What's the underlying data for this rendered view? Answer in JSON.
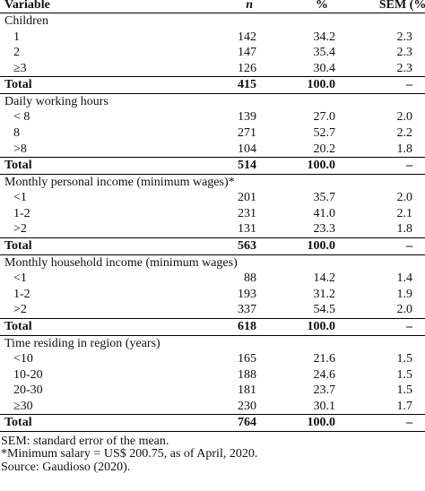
{
  "table": {
    "header": [
      "Variable",
      "n",
      "%",
      "SEM (%)"
    ],
    "sections": [
      {
        "title": "Children",
        "rows": [
          [
            "1",
            "142",
            "34.2",
            "2.3"
          ],
          [
            "2",
            "147",
            "35.4",
            "2.3"
          ],
          [
            "≥3",
            "126",
            "30.4",
            "2.3"
          ]
        ],
        "total": [
          "Total",
          "415",
          "100.0",
          "–"
        ]
      },
      {
        "title": "Daily working hours",
        "rows": [
          [
            "< 8",
            "139",
            "27.0",
            "2.0"
          ],
          [
            "8",
            "271",
            "52.7",
            "2.2"
          ],
          [
            ">8",
            "104",
            "20.2",
            "1.8"
          ]
        ],
        "total": [
          "Total",
          "514",
          "100.0",
          "–"
        ]
      },
      {
        "title": "Monthly personal income (minimum wages)*",
        "rows": [
          [
            "<1",
            "201",
            "35.7",
            "2.0"
          ],
          [
            "1-2",
            "231",
            "41.0",
            "2.1"
          ],
          [
            ">2",
            "131",
            "23.3",
            "1.8"
          ]
        ],
        "total": [
          "Total",
          "563",
          "100.0",
          "–"
        ]
      },
      {
        "title": "Monthly household income (minimum wages)",
        "rows": [
          [
            "<1",
            "88",
            "14.2",
            "1.4"
          ],
          [
            "1-2",
            "193",
            "31.2",
            "1.9"
          ],
          [
            ">2",
            "337",
            "54.5",
            "2.0"
          ]
        ],
        "total": [
          "Total",
          "618",
          "100.0",
          "–"
        ]
      },
      {
        "title": "Time residing in region (years)",
        "rows": [
          [
            "<10",
            "165",
            "21.6",
            "1.5"
          ],
          [
            "10-20",
            "188",
            "24.6",
            "1.5"
          ],
          [
            "20-30",
            "181",
            "23.7",
            "1.5"
          ],
          [
            "≥30",
            "230",
            "30.1",
            "1.7"
          ]
        ],
        "total": [
          "Total",
          "764",
          "100.0",
          "–"
        ]
      }
    ]
  },
  "notes": [
    "SEM: standard error of the mean.",
    "*Minimum salary = US$ 200.75, as of April, 2020.",
    "Source: Gaudioso (2020)."
  ]
}
